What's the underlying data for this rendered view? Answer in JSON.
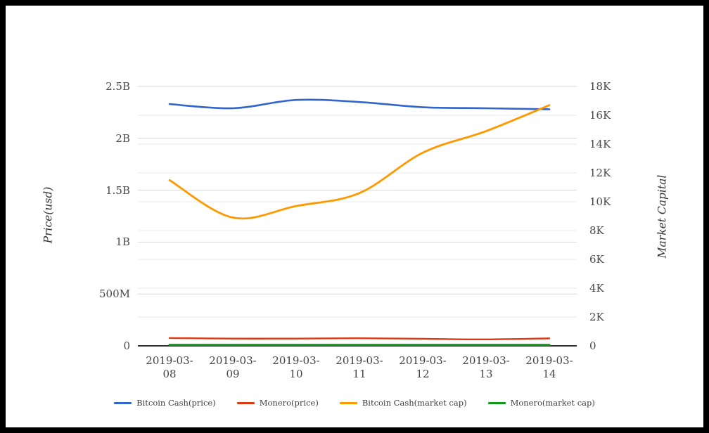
{
  "chart_data": {
    "type": "line",
    "title": "",
    "categories": [
      "2019-03-08",
      "2019-03-09",
      "2019-03-10",
      "2019-03-11",
      "2019-03-12",
      "2019-03-13",
      "2019-03-14"
    ],
    "left_axis": {
      "title": "Price(usd)",
      "tick_labels": [
        "0",
        "500M",
        "1B",
        "1.5B",
        "2B",
        "2.5B"
      ],
      "tick_values": [
        0,
        0.5,
        1,
        1.5,
        2,
        2.5
      ],
      "min": 0,
      "max": 2.5,
      "unit": "billions usd"
    },
    "right_axis": {
      "title": "Market Capital",
      "tick_labels": [
        "0",
        "2K",
        "4K",
        "6K",
        "8K",
        "10K",
        "12K",
        "14K",
        "16K",
        "18K"
      ],
      "tick_values": [
        0,
        2,
        4,
        6,
        8,
        10,
        12,
        14,
        16,
        18
      ],
      "min": 0,
      "max": 18,
      "unit": "thousands"
    },
    "series": [
      {
        "name": "Bitcoin Cash(price)",
        "color": "#3366cc",
        "axis": "left",
        "width": 2.6,
        "values": [
          2.33,
          2.29,
          2.37,
          2.35,
          2.3,
          2.29,
          2.28
        ]
      },
      {
        "name": "Monero(price)",
        "color": "#dc3912",
        "axis": "left",
        "width": 2.4,
        "values": [
          0.075,
          0.07,
          0.07,
          0.073,
          0.068,
          0.062,
          0.072
        ]
      },
      {
        "name": "Bitcoin Cash(market cap)",
        "color": "#ff9900",
        "axis": "right",
        "width": 2.8,
        "values": [
          11.5,
          8.9,
          9.7,
          10.6,
          13.4,
          14.9,
          16.7
        ]
      },
      {
        "name": "Monero(market cap)",
        "color": "#109618",
        "axis": "right",
        "width": 3.0,
        "values": [
          0.07,
          0.07,
          0.07,
          0.07,
          0.07,
          0.07,
          0.07
        ]
      }
    ],
    "grid": true,
    "legend_position": "bottom",
    "colors": {
      "grid_major": "#d9d9d9",
      "grid_minor": "#e9e9e9",
      "baseline": "#2f2f2f",
      "text": "#4a4a4a",
      "background": "#ffffff",
      "frame": "#000000"
    }
  }
}
